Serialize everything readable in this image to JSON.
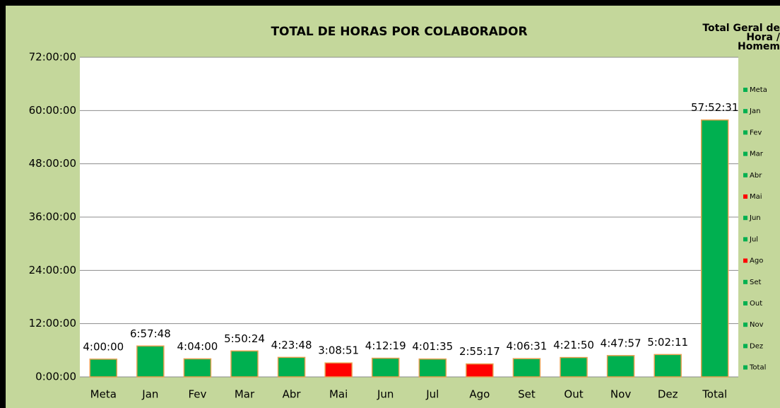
{
  "chart_data": {
    "type": "bar",
    "title": "TOTAL DE HORAS POR COLABORADOR",
    "categories": [
      "Meta",
      "Jan",
      "Fev",
      "Mar",
      "Abr",
      "Mai",
      "Jun",
      "Jul",
      "Ago",
      "Set",
      "Out",
      "Nov",
      "Dez",
      "Total"
    ],
    "values": [
      4,
      6.963333,
      4.066667,
      5.84,
      4.396667,
      3.1475,
      4.205278,
      4.026389,
      2.921389,
      4.108611,
      4.363889,
      4.799167,
      5.036389,
      57.875278
    ],
    "value_labels": [
      "4:00:00",
      "6:57:48",
      "4:04:00",
      "5:50:24",
      "4:23:48",
      "3:08:51",
      "4:12:19",
      "4:01:35",
      "2:55:17",
      "4:06:31",
      "4:21:50",
      "4:47:57",
      "5:02:11",
      "57:52:31"
    ],
    "colors": [
      "#00b050",
      "#00b050",
      "#00b050",
      "#00b050",
      "#00b050",
      "#ff0000",
      "#00b050",
      "#00b050",
      "#ff0000",
      "#00b050",
      "#00b050",
      "#00b050",
      "#00b050",
      "#00b050"
    ],
    "ylim": [
      0,
      72
    ],
    "yticks": [
      {
        "value": 0,
        "label": "0:00:00"
      },
      {
        "value": 12,
        "label": "12:00:00"
      },
      {
        "value": 24,
        "label": "24:00:00"
      },
      {
        "value": 36,
        "label": "36:00:00"
      },
      {
        "value": 48,
        "label": "48:00:00"
      },
      {
        "value": 60,
        "label": "60:00:00"
      },
      {
        "value": 72,
        "label": "72:00:00"
      }
    ],
    "grid": true,
    "legend_title": "Total Geral de Hora / Homem",
    "legend": "right"
  }
}
